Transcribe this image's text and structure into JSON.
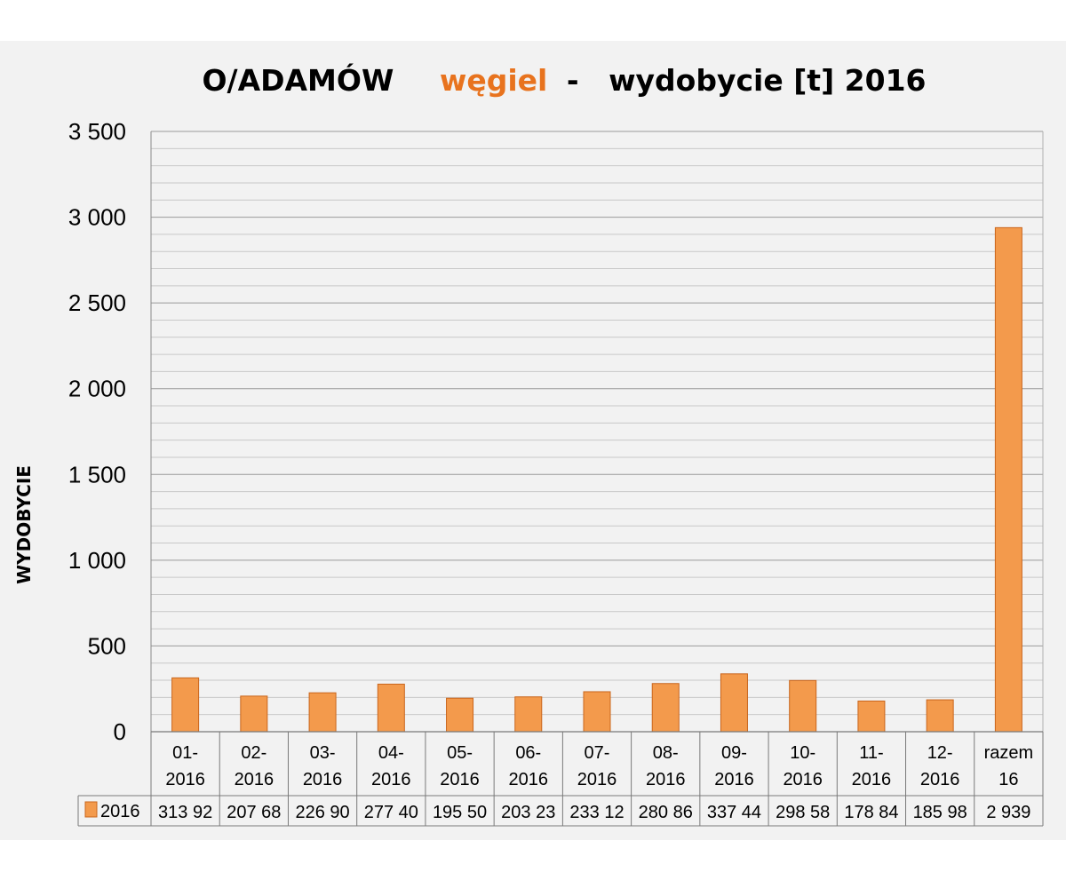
{
  "colors": {
    "bar": "#f39a4c",
    "bar_stroke": "#c9651c",
    "title_accent": "#e8731e",
    "text": "#000000",
    "grid": "#c8c8c8",
    "background": "#f2f2f2"
  },
  "chart_data": {
    "type": "bar",
    "title_parts": {
      "left": "O/ADAMÓW",
      "accent": "węgiel",
      "dash": "-",
      "right": "wydobycie [t] 2016"
    },
    "ylabel": "WYDOBYCIE",
    "ylim": [
      0,
      3500
    ],
    "yticks": [
      {
        "value": 0,
        "label": "0"
      },
      {
        "value": 500,
        "label": "500"
      },
      {
        "value": 1000,
        "label": "1 000"
      },
      {
        "value": 1500,
        "label": "1 500"
      },
      {
        "value": 2000,
        "label": "2 000"
      },
      {
        "value": 2500,
        "label": "2 500"
      },
      {
        "value": 3000,
        "label": "3 000"
      },
      {
        "value": 3500,
        "label": "3 500"
      }
    ],
    "minor_grid_step": 100,
    "grid": true,
    "legend_placement": "data-table",
    "categories": [
      {
        "line1": "01-",
        "line2": "2016"
      },
      {
        "line1": "02-",
        "line2": "2016"
      },
      {
        "line1": "03-",
        "line2": "2016"
      },
      {
        "line1": "04-",
        "line2": "2016"
      },
      {
        "line1": "05-",
        "line2": "2016"
      },
      {
        "line1": "06-",
        "line2": "2016"
      },
      {
        "line1": "07-",
        "line2": "2016"
      },
      {
        "line1": "08-",
        "line2": "2016"
      },
      {
        "line1": "09-",
        "line2": "2016"
      },
      {
        "line1": "10-",
        "line2": "2016"
      },
      {
        "line1": "11-",
        "line2": "2016"
      },
      {
        "line1": "12-",
        "line2": "2016"
      },
      {
        "line1": "razem",
        "line2": "16"
      }
    ],
    "series": [
      {
        "name": "2016",
        "values": [
          313.92,
          207.68,
          226.9,
          277.4,
          195.5,
          203.23,
          233.12,
          280.86,
          337.44,
          298.58,
          178.84,
          185.98,
          2939
        ],
        "value_labels": [
          "313 92",
          "207 68",
          "226 90",
          "277 40",
          "195 50",
          "203 23",
          "233 12",
          "280 86",
          "337 44",
          "298 58",
          "178 84",
          "185 98",
          "2 939"
        ]
      }
    ]
  }
}
